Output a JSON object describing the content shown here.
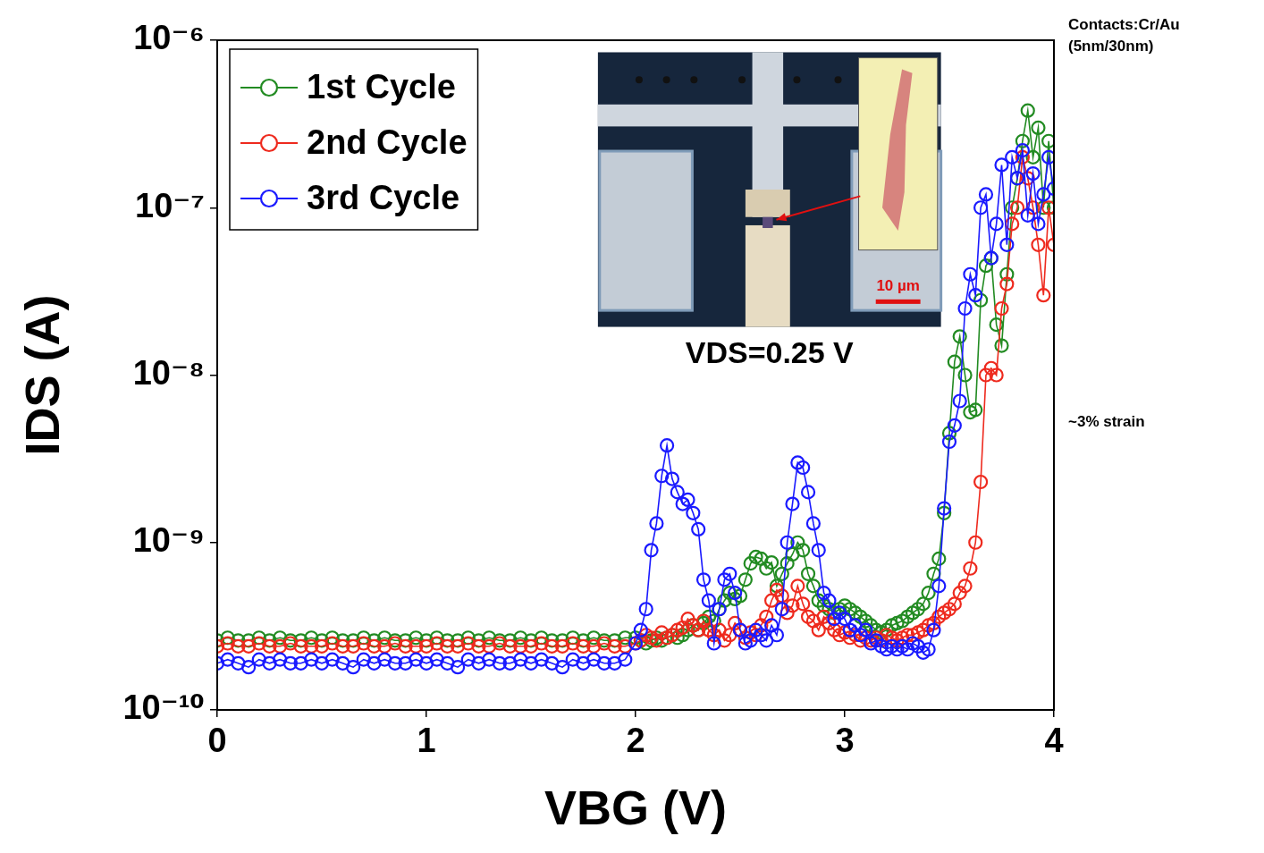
{
  "chart_data": {
    "type": "line",
    "x_label": "VBG (V)",
    "y_label": "IDS (A)",
    "xlim": [
      0,
      4
    ],
    "xticks": [
      0,
      1,
      2,
      3,
      4
    ],
    "ylim": [
      1e-10,
      1e-06
    ],
    "yticks": [
      {
        "value": 1e-10,
        "label": "10⁻¹⁰"
      },
      {
        "value": 1e-09,
        "label": "10⁻⁹"
      },
      {
        "value": 1e-08,
        "label": "10⁻⁸"
      },
      {
        "value": 1e-07,
        "label": "10⁻⁷"
      },
      {
        "value": 1e-06,
        "label": "10⁻⁶"
      }
    ],
    "log": "y",
    "grid": false,
    "legend": "upper left",
    "annotations": [
      "VDS=0.25 V",
      "Contacts:Cr/Au (5nm/30nm)",
      "~3% strain"
    ],
    "inset_scale_label": "10 µm",
    "x": [
      0,
      0.05,
      0.1,
      0.15,
      0.2,
      0.25,
      0.3,
      0.35,
      0.4,
      0.45,
      0.5,
      0.55,
      0.6,
      0.65,
      0.7,
      0.75,
      0.8,
      0.85,
      0.9,
      0.95,
      1,
      1.05,
      1.1,
      1.15,
      1.2,
      1.25,
      1.3,
      1.35,
      1.4,
      1.45,
      1.5,
      1.55,
      1.6,
      1.65,
      1.7,
      1.75,
      1.8,
      1.85,
      1.9,
      1.95,
      2,
      2.025,
      2.05,
      2.075,
      2.1,
      2.125,
      2.15,
      2.175,
      2.2,
      2.225,
      2.25,
      2.275,
      2.3,
      2.325,
      2.35,
      2.375,
      2.4,
      2.425,
      2.45,
      2.475,
      2.5,
      2.525,
      2.55,
      2.575,
      2.6,
      2.625,
      2.65,
      2.675,
      2.7,
      2.725,
      2.75,
      2.775,
      2.8,
      2.825,
      2.85,
      2.875,
      2.9,
      2.925,
      2.95,
      2.975,
      3,
      3.025,
      3.05,
      3.075,
      3.1,
      3.125,
      3.15,
      3.175,
      3.2,
      3.225,
      3.25,
      3.275,
      3.3,
      3.325,
      3.35,
      3.375,
      3.4,
      3.425,
      3.45,
      3.475,
      3.5,
      3.525,
      3.55,
      3.575,
      3.6,
      3.625,
      3.65,
      3.675,
      3.7,
      3.725,
      3.75,
      3.775,
      3.8,
      3.825,
      3.85,
      3.875,
      3.9,
      3.925,
      3.95,
      3.975,
      4
    ],
    "series": [
      {
        "name": "1st Cycle",
        "color": "#228b22",
        "marker": "circle",
        "line_style": "solid",
        "values": [
          2.6e-10,
          2.7e-10,
          2.6e-10,
          2.6e-10,
          2.7e-10,
          2.6e-10,
          2.7e-10,
          2.6e-10,
          2.6e-10,
          2.7e-10,
          2.6e-10,
          2.7e-10,
          2.6e-10,
          2.6e-10,
          2.7e-10,
          2.6e-10,
          2.7e-10,
          2.6e-10,
          2.6e-10,
          2.7e-10,
          2.6e-10,
          2.7e-10,
          2.6e-10,
          2.6e-10,
          2.7e-10,
          2.6e-10,
          2.7e-10,
          2.6e-10,
          2.6e-10,
          2.7e-10,
          2.6e-10,
          2.7e-10,
          2.6e-10,
          2.6e-10,
          2.7e-10,
          2.6e-10,
          2.7e-10,
          2.6e-10,
          2.6e-10,
          2.7e-10,
          2.7e-10,
          2.6e-10,
          2.5e-10,
          2.6e-10,
          2.7e-10,
          2.6e-10,
          2.7e-10,
          2.8e-10,
          2.7e-10,
          2.8e-10,
          3e-10,
          3.2e-10,
          3e-10,
          3.3e-10,
          3.6e-10,
          3.4e-10,
          4e-10,
          4.5e-10,
          5e-10,
          4.6e-10,
          4.8e-10,
          6e-10,
          7.5e-10,
          8.2e-10,
          8e-10,
          7e-10,
          7.6e-10,
          5.5e-10,
          6.5e-10,
          7.5e-10,
          8.5e-10,
          1e-09,
          9e-10,
          6.5e-10,
          5.5e-10,
          4.5e-10,
          4.2e-10,
          4e-10,
          3.8e-10,
          4e-10,
          4.2e-10,
          4e-10,
          3.8e-10,
          3.6e-10,
          3.4e-10,
          3.2e-10,
          3e-10,
          2.9e-10,
          3e-10,
          3.2e-10,
          3.3e-10,
          3.4e-10,
          3.6e-10,
          3.8e-10,
          4e-10,
          4.3e-10,
          5e-10,
          6.5e-10,
          8e-10,
          1.5e-09,
          4.5e-09,
          1.2e-08,
          1.7e-08,
          1e-08,
          6e-09,
          6.2e-09,
          2.8e-08,
          4.5e-08,
          5e-08,
          2e-08,
          1.5e-08,
          4e-08,
          1e-07,
          1.5e-07,
          2.5e-07,
          3.8e-07,
          2e-07,
          3e-07,
          1e-07,
          2.5e-07,
          1e-07
        ]
      },
      {
        "name": "2nd Cycle",
        "color": "#ee2a1e",
        "marker": "circle",
        "line_style": "solid",
        "values": [
          2.4e-10,
          2.5e-10,
          2.4e-10,
          2.4e-10,
          2.5e-10,
          2.4e-10,
          2.4e-10,
          2.5e-10,
          2.4e-10,
          2.4e-10,
          2.4e-10,
          2.5e-10,
          2.4e-10,
          2.4e-10,
          2.5e-10,
          2.4e-10,
          2.4e-10,
          2.5e-10,
          2.4e-10,
          2.4e-10,
          2.4e-10,
          2.5e-10,
          2.4e-10,
          2.4e-10,
          2.5e-10,
          2.4e-10,
          2.4e-10,
          2.5e-10,
          2.4e-10,
          2.4e-10,
          2.4e-10,
          2.5e-10,
          2.4e-10,
          2.4e-10,
          2.5e-10,
          2.4e-10,
          2.4e-10,
          2.5e-10,
          2.4e-10,
          2.4e-10,
          2.5e-10,
          2.6e-10,
          2.8e-10,
          2.7e-10,
          2.6e-10,
          2.9e-10,
          2.7e-10,
          2.8e-10,
          3e-10,
          3.1e-10,
          3.5e-10,
          3.2e-10,
          3e-10,
          3.4e-10,
          3e-10,
          2.8e-10,
          3e-10,
          2.6e-10,
          2.8e-10,
          3.3e-10,
          3e-10,
          2.7e-10,
          2.9e-10,
          2.8e-10,
          3.2e-10,
          3.6e-10,
          4.5e-10,
          5.2e-10,
          4.8e-10,
          3.8e-10,
          4.2e-10,
          5.5e-10,
          4.3e-10,
          3.6e-10,
          3.4e-10,
          3e-10,
          3.6e-10,
          3.3e-10,
          3e-10,
          2.8e-10,
          2.9e-10,
          2.7e-10,
          2.8e-10,
          2.6e-10,
          2.7e-10,
          2.6e-10,
          2.7e-10,
          2.6e-10,
          2.8e-10,
          2.7e-10,
          2.6e-10,
          2.7e-10,
          2.8e-10,
          2.8e-10,
          2.9e-10,
          3e-10,
          3.2e-10,
          3.3e-10,
          3.6e-10,
          3.8e-10,
          4e-10,
          4.3e-10,
          5e-10,
          5.5e-10,
          7e-10,
          1e-09,
          2.3e-09,
          1e-08,
          1.1e-08,
          1e-08,
          2.5e-08,
          3.5e-08,
          8e-08,
          1e-07,
          2e-07,
          1.5e-07,
          1e-07,
          6e-08,
          3e-08,
          1e-07,
          6e-08
        ]
      },
      {
        "name": "3rd Cycle",
        "color": "#1a1aff",
        "marker": "circle",
        "line_style": "solid",
        "values": [
          1.9e-10,
          2e-10,
          1.9e-10,
          1.8e-10,
          2e-10,
          1.9e-10,
          2e-10,
          1.9e-10,
          1.9e-10,
          2e-10,
          1.9e-10,
          2e-10,
          1.9e-10,
          1.8e-10,
          2e-10,
          1.9e-10,
          2e-10,
          1.9e-10,
          1.9e-10,
          2e-10,
          1.9e-10,
          2e-10,
          1.9e-10,
          1.8e-10,
          2e-10,
          1.9e-10,
          2e-10,
          1.9e-10,
          1.9e-10,
          2e-10,
          1.9e-10,
          2e-10,
          1.9e-10,
          1.8e-10,
          2e-10,
          1.9e-10,
          2e-10,
          1.9e-10,
          1.9e-10,
          2e-10,
          2.5e-10,
          3e-10,
          4e-10,
          9e-10,
          1.3e-09,
          2.5e-09,
          3.8e-09,
          2.4e-09,
          2e-09,
          1.7e-09,
          1.8e-09,
          1.5e-09,
          1.2e-09,
          6e-10,
          4.5e-10,
          2.5e-10,
          4e-10,
          6e-10,
          6.5e-10,
          5e-10,
          3e-10,
          2.5e-10,
          2.6e-10,
          3e-10,
          2.8e-10,
          2.6e-10,
          3.2e-10,
          2.8e-10,
          4e-10,
          1e-09,
          1.7e-09,
          3e-09,
          2.8e-09,
          2e-09,
          1.3e-09,
          9e-10,
          5e-10,
          4.5e-10,
          3.5e-10,
          3.8e-10,
          3.5e-10,
          3e-10,
          3.2e-10,
          2.8e-10,
          3e-10,
          2.5e-10,
          2.6e-10,
          2.4e-10,
          2.3e-10,
          2.4e-10,
          2.3e-10,
          2.4e-10,
          2.3e-10,
          2.5e-10,
          2.4e-10,
          2.2e-10,
          2.3e-10,
          3e-10,
          5.5e-10,
          1.6e-09,
          4e-09,
          5e-09,
          7e-09,
          2.5e-08,
          4e-08,
          3e-08,
          1e-07,
          1.2e-07,
          5e-08,
          8e-08,
          1.8e-07,
          6e-08,
          2e-07,
          1.5e-07,
          2.2e-07,
          9e-08,
          1.6e-07,
          8e-08,
          1.2e-07,
          2e-07,
          1.3e-07
        ]
      }
    ]
  }
}
